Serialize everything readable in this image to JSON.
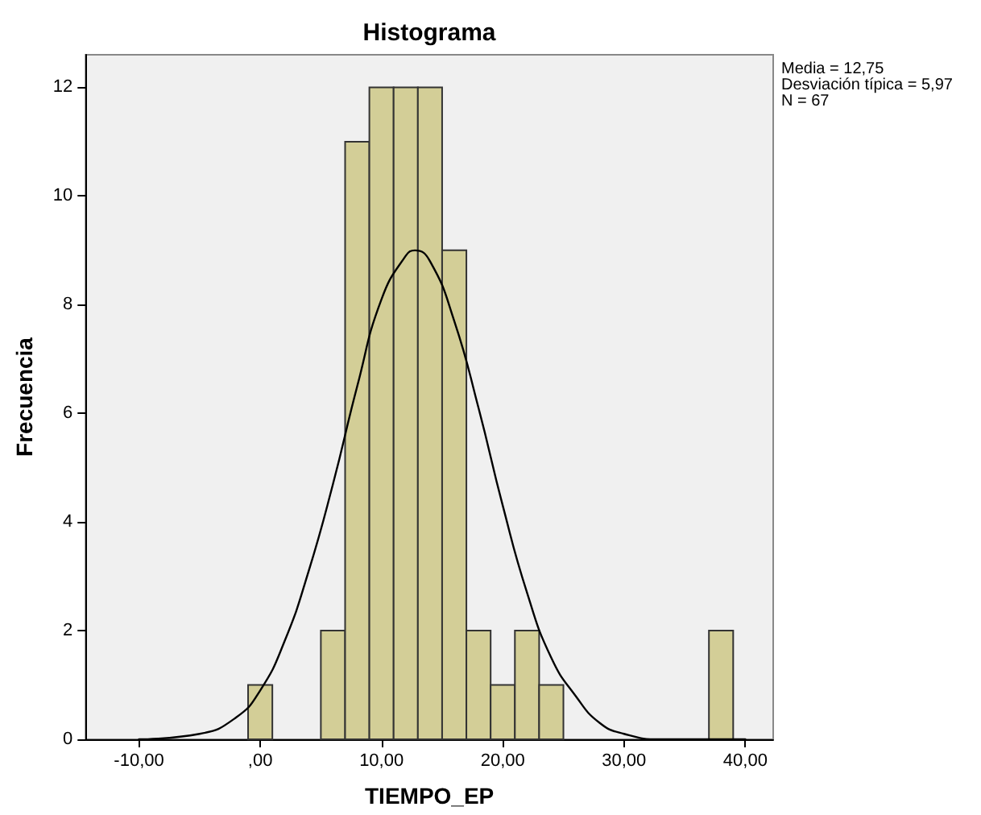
{
  "chart_data": {
    "type": "histogram",
    "title": "Histograma",
    "xlabel": "TIEMPO_EP",
    "ylabel": "Frecuencia",
    "annotations": [
      "Media = 12,75",
      "Desviación típica = 5,97",
      "N = 67"
    ],
    "series": [
      {
        "color": "#d3ce97",
        "bins": [
          -1,
          1,
          3,
          5,
          7,
          9,
          11,
          13,
          15,
          17,
          19,
          21,
          23,
          25,
          27,
          29,
          31,
          33,
          35,
          37,
          39
        ],
        "values": [
          1,
          0,
          0,
          2,
          11,
          12,
          12,
          12,
          9,
          2,
          1,
          2,
          1,
          0,
          0,
          0,
          0,
          0,
          0,
          2
        ]
      },
      {
        "type": "line",
        "color": "#000000",
        "x": [
          -10,
          -5,
          -2,
          0,
          2,
          4,
          6,
          8,
          10,
          12,
          12.75,
          14,
          16,
          18,
          20,
          22,
          24,
          26,
          28,
          30,
          33,
          36,
          40
        ],
        "values": [
          0,
          0.1,
          0.4,
          0.9,
          1.8,
          3.1,
          4.7,
          6.5,
          8.1,
          8.9,
          9,
          8.8,
          7.7,
          6.1,
          4.3,
          2.7,
          1.5,
          0.8,
          0.3,
          0.1,
          0,
          0,
          0
        ]
      }
    ],
    "xlim": [
      -14.4,
      42.3
    ],
    "ylim": [
      0,
      12.6
    ],
    "xticks": [
      {
        "value": -10,
        "label": "-10,00"
      },
      {
        "value": 0,
        "label": ",00"
      },
      {
        "value": 10,
        "label": "10,00"
      },
      {
        "value": 20,
        "label": "20,00"
      },
      {
        "value": 30,
        "label": "30,00"
      },
      {
        "value": 40,
        "label": "40,00"
      }
    ],
    "yticks": [
      0,
      2,
      4,
      6,
      8,
      10,
      12
    ],
    "grid": false
  }
}
